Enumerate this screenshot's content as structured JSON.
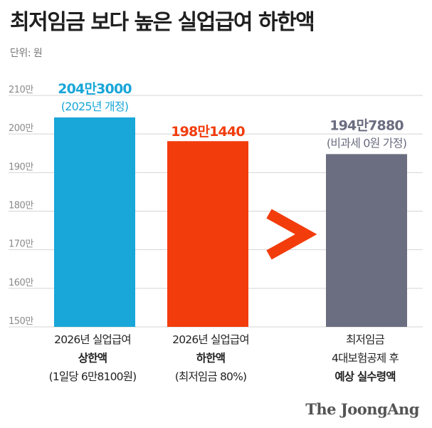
{
  "header": {
    "title": "최저임금 보다 높은 실업급여 하한액",
    "unit": "단위: 원"
  },
  "chart_data": {
    "type": "bar",
    "categories": [
      "2026년 실업급여 상한액",
      "2026년 실업급여 하한액",
      "최저임금 4대보험공제 후 예상 실수령액"
    ],
    "values": [
      2043000,
      1981440,
      1947880
    ],
    "value_labels": [
      "204만3000",
      "198만1440",
      "194만7880"
    ],
    "value_sublabels": [
      "(2025년 개정)",
      "",
      "(비과세 0원 가정)"
    ],
    "colors": [
      "#19a6d8",
      "#f23c0c",
      "#6b6d80"
    ],
    "label_colors": [
      "#19a6d8",
      "#f23c0c",
      "#6b6d80"
    ],
    "ylim": [
      1500000,
      2100000
    ],
    "yticks": [
      {
        "value": 2100000,
        "label": "210만"
      },
      {
        "value": 2000000,
        "label": "200만"
      },
      {
        "value": 1900000,
        "label": "190만"
      },
      {
        "value": 1800000,
        "label": "180만"
      },
      {
        "value": 1700000,
        "label": "170만"
      },
      {
        "value": 1600000,
        "label": "160만"
      },
      {
        "value": 1500000,
        "label": "150만"
      }
    ],
    "grid": true,
    "comparison_symbol": ">",
    "comparison_color": "#f23c0c"
  },
  "categories_text": [
    {
      "line1": "2026년 실업급여",
      "line2": "상한액",
      "line3": "(1일당 6만8100원)"
    },
    {
      "line1": "2026년 실업급여",
      "line2": "하한액",
      "line3": "(최저임금 80%)"
    },
    {
      "line1": "최저임금",
      "line2": "4대보험공제 후",
      "line3": "예상 실수령액"
    }
  ],
  "logo": "The JoongAng"
}
